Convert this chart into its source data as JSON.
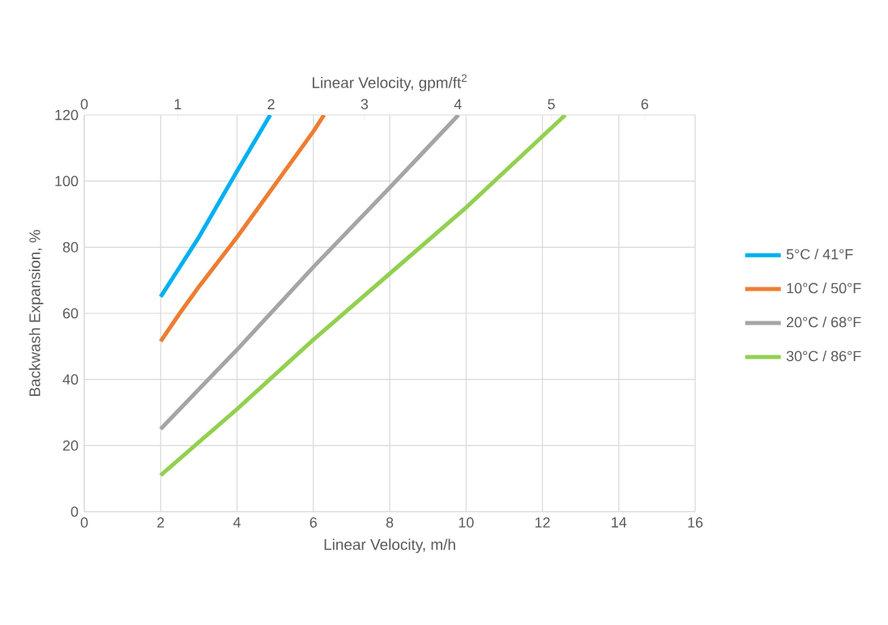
{
  "chart_data": {
    "type": "line",
    "xlabel": "Linear Velocity, m/h",
    "x2label": "Linear Velocity, gpm/ft$^{2}$",
    "ylabel": "Backwash Expansion, %",
    "xlim": [
      0,
      16
    ],
    "xticks": [
      0,
      2,
      4,
      6,
      8,
      10,
      12,
      14,
      16
    ],
    "x2lim": [
      0,
      6.54
    ],
    "x2ticks": [
      0,
      1,
      2,
      3,
      4,
      5,
      6
    ],
    "ylim": [
      0,
      120
    ],
    "yticks": [
      0,
      20,
      40,
      60,
      80,
      100,
      120
    ],
    "grid": true,
    "legend": "right",
    "marker": "none",
    "line_style": "solid",
    "series": [
      {
        "name": "5°C / 41°F",
        "color": "#00b0f0",
        "x": [
          2,
          2.5,
          3,
          4,
          4.87
        ],
        "values": [
          65,
          74,
          83,
          103,
          120
        ]
      },
      {
        "name": "10°C / 50°F",
        "color": "#ed7d31",
        "x": [
          2,
          2.5,
          3,
          4,
          5,
          6,
          6.28
        ],
        "values": [
          51.5,
          60,
          68,
          83,
          99,
          115,
          120
        ]
      },
      {
        "name": "20°C / 68°F",
        "color": "#a5a5a5",
        "x": [
          2,
          4,
          6,
          8,
          9.8
        ],
        "values": [
          25,
          49,
          74,
          98,
          120
        ]
      },
      {
        "name": "30°C / 86°F",
        "color": "#92d050",
        "x": [
          2,
          4,
          6,
          8,
          10,
          12.6
        ],
        "values": [
          11,
          31,
          52,
          72,
          92,
          120
        ]
      }
    ]
  }
}
